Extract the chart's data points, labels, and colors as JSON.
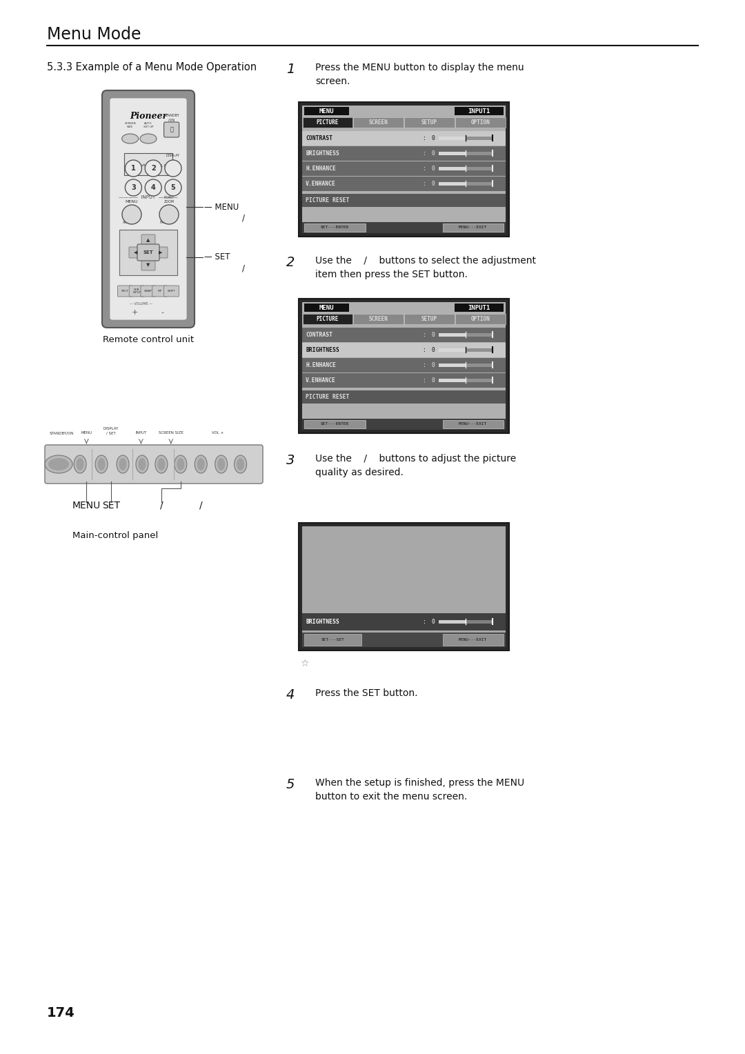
{
  "page_title": "Menu Mode",
  "section_title": "5.3.3 Example of a Menu Mode Operation",
  "bg_color": "#ffffff",
  "page_number": "174",
  "step1_line1": "Press the MENU button to display the menu",
  "step1_line2": "screen.",
  "step2_line1": "Use the    /    buttons to select the adjustment",
  "step2_line2": "item then press the SET button.",
  "step3_line1": "Use the    /    buttons to adjust the picture",
  "step3_line2": "quality as desired.",
  "step4_text": "Press the SET button.",
  "step5_line1": "When the setup is finished, press the MENU",
  "step5_line2": "button to exit the menu screen.",
  "remote_label": "Remote control unit",
  "panel_label": "Main-control panel",
  "menu_tabs": [
    "PICTURE",
    "SCREEN",
    "SETUP",
    "OPTION"
  ],
  "menu_items": [
    "CONTRAST",
    "BRIGHTNESS",
    "H.ENHANCE",
    "V.ENHANCE"
  ],
  "screen1_highlighted": 0,
  "screen2_highlighted": 1,
  "menu_header": "MENU",
  "input_header": "INPUT1",
  "picture_reset": "PICTURE RESET",
  "set_enter_label": "SET···ENTER",
  "menu_exit_label": "MENU···EXIT",
  "brightness_label": "BRIGHTNESS",
  "set_set_label": "SET···SET"
}
